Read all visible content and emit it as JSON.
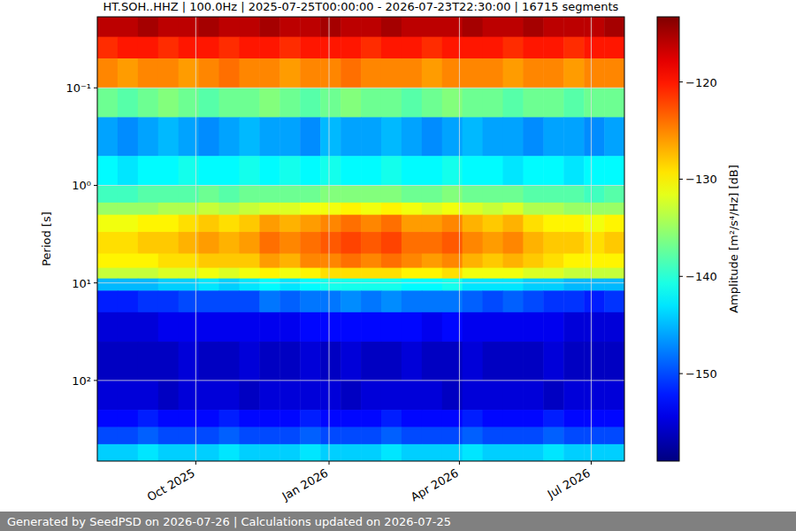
{
  "chart_data": {
    "type": "heatmap",
    "title": "HT.SOH..HHZ | 100.0Hz | 2025-07-25T00:00:00 - 2026-07-23T22:30:00 | 16715 segments",
    "y_label": "Period [s]",
    "colorbar_label": "Amplitude [m²/s⁴/Hz] [dB]",
    "footer": "Generated by SeedPSD on 2026-07-26 | Calculations updated on 2026-07-25",
    "log": "y",
    "grid": true,
    "xlim": [
      "2025-07-25T00:00:00",
      "2026-07-23T22:30:00"
    ],
    "ylim": [
      0.0187,
      671
    ],
    "xticks": [
      {
        "value": "2025-10-01",
        "label": "Oct 2025"
      },
      {
        "value": "2026-01-01",
        "label": "Jan 2026"
      },
      {
        "value": "2026-04-01",
        "label": "Apr 2026"
      },
      {
        "value": "2026-07-01",
        "label": "Jul 2026"
      }
    ],
    "yticks": [
      {
        "value": 0.1,
        "label": "10⁻¹"
      },
      {
        "value": 1,
        "label": "10⁰"
      },
      {
        "value": 10,
        "label": "10¹"
      },
      {
        "value": 100,
        "label": "10²"
      }
    ],
    "clim": [
      -159,
      -113.3
    ],
    "cticks": [
      {
        "value": -120,
        "label": "−120"
      },
      {
        "value": -130,
        "label": "−130"
      },
      {
        "value": -140,
        "label": "−140"
      },
      {
        "value": -150,
        "label": "−150"
      }
    ],
    "x_bins": [
      "2025-07-25",
      "2025-08-08",
      "2025-08-22",
      "2025-09-05",
      "2025-09-19",
      "2025-10-03",
      "2025-10-17",
      "2025-10-31",
      "2025-11-14",
      "2025-11-28",
      "2025-12-12",
      "2025-12-26",
      "2026-01-09",
      "2026-01-23",
      "2026-02-06",
      "2026-02-20",
      "2026-03-06",
      "2026-03-20",
      "2026-04-03",
      "2026-04-17",
      "2026-05-01",
      "2026-05-15",
      "2026-05-29",
      "2026-06-12",
      "2026-06-26",
      "2026-07-10",
      "2026-07-23T22:30:00"
    ],
    "y_bins": [
      0.0187,
      0.03,
      0.05,
      0.1,
      0.2,
      0.5,
      1,
      1.5,
      2,
      3,
      5,
      7,
      9,
      12,
      20,
      40,
      100,
      200,
      300,
      450,
      671
    ],
    "z": [
      [
        -116,
        -116,
        -115,
        -116,
        -116,
        -115,
        -116,
        -116,
        -115,
        -116,
        -116,
        -115,
        -116,
        -116,
        -115,
        -116,
        -116,
        -116,
        -115,
        -116,
        -116,
        -115,
        -116,
        -116,
        -116,
        -115
      ],
      [
        -121,
        -120,
        -120,
        -121,
        -120,
        -120,
        -121,
        -120,
        -120,
        -121,
        -120,
        -120,
        -120,
        -121,
        -120,
        -120,
        -121,
        -120,
        -120,
        -120,
        -121,
        -120,
        -120,
        -121,
        -120,
        -120
      ],
      [
        -125,
        -126,
        -125,
        -125,
        -126,
        -125,
        -124,
        -125,
        -125,
        -126,
        -125,
        -125,
        -124,
        -125,
        -125,
        -125,
        -126,
        -125,
        -125,
        -125,
        -126,
        -125,
        -125,
        -126,
        -125,
        -125
      ],
      [
        -137,
        -138,
        -137,
        -136,
        -137,
        -138,
        -137,
        -137,
        -136,
        -137,
        -138,
        -137,
        -136,
        -137,
        -137,
        -138,
        -137,
        -136,
        -137,
        -137,
        -138,
        -137,
        -137,
        -138,
        -137,
        -137
      ],
      [
        -146,
        -147,
        -146,
        -145,
        -146,
        -147,
        -146,
        -145,
        -146,
        -146,
        -147,
        -145,
        -146,
        -146,
        -145,
        -146,
        -147,
        -146,
        -145,
        -146,
        -146,
        -147,
        -146,
        -146,
        -147,
        -146
      ],
      [
        -142,
        -143,
        -142,
        -142,
        -141,
        -142,
        -142,
        -141,
        -142,
        -141,
        -142,
        -141,
        -142,
        -142,
        -141,
        -142,
        -142,
        -141,
        -142,
        -142,
        -143,
        -142,
        -142,
        -143,
        -142,
        -142
      ],
      [
        -139,
        -139,
        -138,
        -138,
        -138,
        -137,
        -138,
        -137,
        -137,
        -137,
        -137,
        -136,
        -136,
        -136,
        -136,
        -137,
        -137,
        -136,
        -137,
        -137,
        -137,
        -138,
        -138,
        -138,
        -139,
        -138
      ],
      [
        -135,
        -135,
        -135,
        -134,
        -134,
        -133,
        -134,
        -133,
        -132,
        -132,
        -131,
        -131,
        -130,
        -131,
        -130,
        -131,
        -132,
        -131,
        -132,
        -133,
        -132,
        -134,
        -134,
        -135,
        -135,
        -135
      ],
      [
        -131,
        -131,
        -130,
        -130,
        -129,
        -128,
        -129,
        -128,
        -126,
        -127,
        -126,
        -125,
        -124,
        -125,
        -124,
        -126,
        -126,
        -125,
        -127,
        -128,
        -127,
        -129,
        -130,
        -130,
        -131,
        -130
      ],
      [
        -129,
        -129,
        -128,
        -128,
        -127,
        -126,
        -127,
        -126,
        -124,
        -125,
        -124,
        -123,
        -122,
        -123,
        -122,
        -124,
        -124,
        -123,
        -125,
        -126,
        -125,
        -127,
        -128,
        -128,
        -129,
        -128
      ],
      [
        -130,
        -130,
        -130,
        -129,
        -129,
        -128,
        -128,
        -128,
        -126,
        -127,
        -125,
        -125,
        -124,
        -125,
        -124,
        -125,
        -126,
        -125,
        -127,
        -128,
        -127,
        -128,
        -129,
        -130,
        -130,
        -130
      ],
      [
        -133,
        -133,
        -133,
        -132,
        -132,
        -131,
        -132,
        -131,
        -130,
        -131,
        -130,
        -129,
        -129,
        -129,
        -129,
        -130,
        -130,
        -129,
        -131,
        -131,
        -131,
        -132,
        -132,
        -133,
        -133,
        -133
      ],
      [
        -145,
        -145,
        -145,
        -144,
        -144,
        -143,
        -144,
        -143,
        -142,
        -143,
        -142,
        -141,
        -141,
        -141,
        -141,
        -142,
        -142,
        -141,
        -143,
        -143,
        -143,
        -144,
        -144,
        -145,
        -145,
        -145
      ],
      [
        -152,
        -152,
        -151,
        -151,
        -150,
        -150,
        -150,
        -150,
        -148,
        -149,
        -148,
        -148,
        -147,
        -148,
        -147,
        -148,
        -148,
        -148,
        -149,
        -150,
        -149,
        -150,
        -151,
        -151,
        -152,
        -151
      ],
      [
        -155,
        -155,
        -155,
        -154,
        -154,
        -154,
        -154,
        -154,
        -154,
        -154,
        -153,
        -153,
        -153,
        -153,
        -153,
        -153,
        -154,
        -153,
        -154,
        -154,
        -154,
        -154,
        -154,
        -155,
        -155,
        -155
      ],
      [
        -156,
        -156,
        -156,
        -156,
        -155,
        -156,
        -156,
        -155,
        -156,
        -156,
        -155,
        -156,
        -155,
        -156,
        -156,
        -155,
        -156,
        -156,
        -155,
        -156,
        -156,
        -156,
        -155,
        -156,
        -156,
        -156
      ],
      [
        -155,
        -155,
        -155,
        -156,
        -155,
        -155,
        -155,
        -156,
        -155,
        -155,
        -155,
        -155,
        -156,
        -155,
        -155,
        -155,
        -155,
        -156,
        -155,
        -155,
        -155,
        -155,
        -156,
        -155,
        -155,
        -155
      ],
      [
        -153,
        -153,
        -152,
        -153,
        -153,
        -153,
        -152,
        -153,
        -153,
        -153,
        -152,
        -153,
        -153,
        -153,
        -152,
        -153,
        -153,
        -153,
        -152,
        -153,
        -153,
        -153,
        -152,
        -153,
        -153,
        -153
      ],
      [
        -150,
        -150,
        -149,
        -150,
        -150,
        -150,
        -149,
        -150,
        -150,
        -150,
        -149,
        -150,
        -150,
        -150,
        -149,
        -150,
        -150,
        -150,
        -149,
        -150,
        -150,
        -150,
        -149,
        -150,
        -150,
        -150
      ],
      [
        -144,
        -144,
        -143,
        -144,
        -144,
        -144,
        -143,
        -144,
        -144,
        -144,
        -143,
        -144,
        -144,
        -144,
        -143,
        -144,
        -144,
        -144,
        -143,
        -144,
        -144,
        -144,
        -143,
        -144,
        -144,
        -144
      ]
    ]
  }
}
